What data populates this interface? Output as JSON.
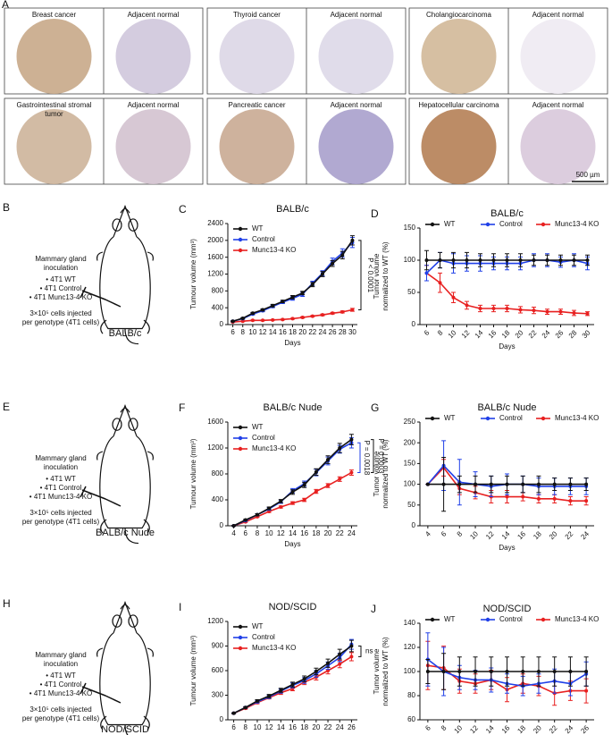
{
  "panel_a": {
    "label": "A",
    "scale_bar": "500 µm",
    "tissues": [
      {
        "tumor": "Breast cancer",
        "normal": "Adjacent normal"
      },
      {
        "tumor": "Thyroid cancer",
        "normal": "Adjacent normal"
      },
      {
        "tumor": "Cholangiocarcinoma",
        "normal": "Adjacent normal"
      },
      {
        "tumor": [
          "Gastrointestinal stromal",
          "tumor"
        ],
        "normal": "Adjacent normal"
      },
      {
        "tumor": "Pancreatic cancer",
        "normal": "Adjacent normal"
      },
      {
        "tumor": "Hepatocellular carcinoma",
        "normal": "Adjacent normal"
      }
    ]
  },
  "mice": [
    {
      "label": "B",
      "inoculation": [
        "Mammary gland",
        "inoculation"
      ],
      "genotypes": [
        {
          "text": "• 4T1 WT",
          "color": "#222222"
        },
        {
          "text": "• 4T1 Control",
          "color": "#1f3fe0"
        },
        {
          "text": "• 4T1 Munc13-4 KO",
          "color": "#e02020"
        }
      ],
      "cells": [
        "3×10⁵ cells injected",
        "per genotype (4T1 cells)"
      ],
      "strain": "BALB/c"
    },
    {
      "label": "E",
      "inoculation": [
        "Mammary gland",
        "inoculation"
      ],
      "genotypes": [
        {
          "text": "• 4T1 WT",
          "color": "#222222"
        },
        {
          "text": "• 4T1 Control",
          "color": "#1f3fe0"
        },
        {
          "text": "• 4T1 Munc13-4 KO",
          "color": "#e02020"
        }
      ],
      "cells": [
        "3×10⁵ cells injected",
        "per genotype (4T1 cells)"
      ],
      "strain": "BALB/c Nude"
    },
    {
      "label": "H",
      "inoculation": [
        "Mammary gland",
        "inoculation"
      ],
      "genotypes": [
        {
          "text": "• 4T1 WT",
          "color": "#222222"
        },
        {
          "text": "• 4T1 Control",
          "color": "#1f3fe0"
        },
        {
          "text": "• 4T1 Munc13-4 KO",
          "color": "#e02020"
        }
      ],
      "cells": [
        "3×10⁵ cells injected",
        "per genotype (4T1 cells)"
      ],
      "strain": "NOD/SCID"
    }
  ],
  "chart_data": [
    {
      "type": "line",
      "label": "C",
      "title": "BALB/c",
      "xlabel": "Days",
      "ylabel": [
        "Tumour volume (mm³)"
      ],
      "legend": "upper left",
      "xtick_rotation": 0,
      "x": [
        6,
        8,
        10,
        12,
        14,
        16,
        18,
        20,
        22,
        24,
        26,
        28,
        30
      ],
      "xlim": [
        5,
        31
      ],
      "xticks": [
        6,
        8,
        10,
        12,
        14,
        16,
        18,
        20,
        22,
        24,
        26,
        28,
        30
      ],
      "ylim": [
        0,
        2400
      ],
      "yticks": [
        0,
        400,
        800,
        1200,
        1600,
        2000,
        2400
      ],
      "annotations": [
        "P < 0.0001"
      ],
      "series": [
        {
          "name": "WT",
          "color": "#111111",
          "values": [
            80,
            150,
            270,
            350,
            450,
            550,
            650,
            750,
            950,
            1200,
            1450,
            1650,
            2000
          ],
          "errors": [
            10,
            15,
            20,
            25,
            30,
            30,
            40,
            40,
            50,
            60,
            70,
            90,
            110
          ]
        },
        {
          "name": "Control",
          "color": "#2040e8",
          "values": [
            80,
            140,
            250,
            330,
            430,
            530,
            620,
            720,
            980,
            1220,
            1500,
            1700,
            1950
          ],
          "errors": [
            10,
            15,
            20,
            25,
            30,
            30,
            40,
            50,
            50,
            60,
            80,
            100,
            120
          ]
        },
        {
          "name": "Munc13-4 KO",
          "color": "#e82020",
          "values": [
            60,
            80,
            100,
            100,
            110,
            120,
            140,
            170,
            200,
            230,
            270,
            300,
            350
          ],
          "errors": [
            5,
            8,
            10,
            10,
            10,
            10,
            12,
            15,
            15,
            20,
            20,
            25,
            35
          ]
        }
      ]
    },
    {
      "type": "line",
      "label": "D",
      "title": "BALB/c",
      "xlabel": "Days",
      "ylabel": [
        "Tumor volume",
        "normalized to WT (%)"
      ],
      "legend": "top",
      "xtick_rotation": -45,
      "x": [
        6,
        8,
        10,
        12,
        14,
        16,
        18,
        20,
        22,
        24,
        26,
        28,
        30
      ],
      "xlim": [
        5,
        31
      ],
      "xticks": [
        6,
        8,
        10,
        12,
        14,
        16,
        18,
        20,
        22,
        24,
        26,
        28,
        30
      ],
      "ylim": [
        0,
        150
      ],
      "yticks": [
        0,
        50,
        100,
        150
      ],
      "annotations": [],
      "series": [
        {
          "name": "WT",
          "color": "#111111",
          "values": [
            100,
            100,
            100,
            100,
            100,
            100,
            100,
            100,
            100,
            100,
            100,
            100,
            100
          ],
          "errors": [
            15,
            12,
            12,
            12,
            10,
            10,
            10,
            10,
            8,
            8,
            8,
            8,
            8
          ]
        },
        {
          "name": "Control",
          "color": "#2040e8",
          "values": [
            80,
            100,
            95,
            95,
            95,
            95,
            95,
            95,
            100,
            100,
            97,
            100,
            95
          ],
          "errors": [
            12,
            12,
            15,
            12,
            12,
            10,
            10,
            10,
            10,
            10,
            8,
            10,
            10
          ]
        },
        {
          "name": "Munc13-4 KO",
          "color": "#e82020",
          "values": [
            80,
            65,
            42,
            30,
            25,
            25,
            25,
            23,
            22,
            20,
            20,
            18,
            17
          ],
          "errors": [
            12,
            15,
            8,
            6,
            5,
            5,
            5,
            5,
            5,
            4,
            4,
            4,
            3
          ]
        }
      ]
    },
    {
      "type": "line",
      "label": "F",
      "title": "BALB/c Nude",
      "xlabel": "Days",
      "ylabel": [
        "Tumour volume (mm³)"
      ],
      "legend": "upper left",
      "xtick_rotation": 0,
      "x": [
        4,
        6,
        8,
        10,
        12,
        14,
        16,
        18,
        20,
        22,
        24
      ],
      "xlim": [
        3,
        25
      ],
      "xticks": [
        4,
        6,
        8,
        10,
        12,
        14,
        16,
        18,
        20,
        22,
        24
      ],
      "ylim": [
        0,
        1600
      ],
      "yticks": [
        0,
        400,
        800,
        1200,
        1600
      ],
      "annotations": [
        "P = 0.0003",
        "P = 0.0018"
      ],
      "series": [
        {
          "name": "WT",
          "color": "#111111",
          "values": [
            0,
            90,
            170,
            270,
            380,
            520,
            630,
            830,
            1020,
            1200,
            1330
          ],
          "errors": [
            5,
            10,
            15,
            20,
            25,
            35,
            40,
            50,
            60,
            70,
            80
          ]
        },
        {
          "name": "Control",
          "color": "#2040e8",
          "values": [
            0,
            80,
            170,
            260,
            370,
            540,
            650,
            820,
            1000,
            1180,
            1280
          ],
          "errors": [
            5,
            10,
            15,
            20,
            25,
            35,
            40,
            50,
            60,
            60,
            80
          ]
        },
        {
          "name": "Munc13-4 KO",
          "color": "#e82020",
          "values": [
            0,
            60,
            140,
            220,
            290,
            350,
            400,
            530,
            620,
            720,
            820
          ],
          "errors": [
            5,
            8,
            10,
            15,
            15,
            20,
            25,
            30,
            30,
            35,
            40
          ]
        }
      ]
    },
    {
      "type": "line",
      "label": "G",
      "title": "BALB/c Nude",
      "xlabel": "Days",
      "ylabel": [
        "Tumor volume",
        "normalized to WT (%)"
      ],
      "legend": "top",
      "xtick_rotation": -45,
      "x": [
        4,
        6,
        8,
        10,
        12,
        14,
        16,
        18,
        20,
        22,
        24
      ],
      "xlim": [
        3,
        25
      ],
      "xticks": [
        4,
        6,
        8,
        10,
        12,
        14,
        16,
        18,
        20,
        22,
        24
      ],
      "ylim": [
        0,
        250
      ],
      "yticks": [
        0,
        50,
        100,
        150,
        200,
        250
      ],
      "annotations": [],
      "series": [
        {
          "name": "WT",
          "color": "#111111",
          "values": [
            100,
            100,
            100,
            100,
            100,
            100,
            100,
            100,
            100,
            100,
            100
          ],
          "errors": [
            0,
            65,
            20,
            20,
            20,
            20,
            20,
            20,
            15,
            15,
            15
          ]
        },
        {
          "name": "Control",
          "color": "#2040e8",
          "values": [
            100,
            145,
            105,
            100,
            95,
            100,
            100,
            95,
            95,
            95,
            95
          ],
          "errors": [
            0,
            60,
            55,
            30,
            25,
            25,
            20,
            20,
            20,
            20,
            20
          ]
        },
        {
          "name": "Munc13-4 KO",
          "color": "#e82020",
          "values": [
            100,
            140,
            90,
            80,
            70,
            70,
            70,
            65,
            65,
            60,
            60
          ],
          "errors": [
            0,
            20,
            15,
            15,
            15,
            15,
            10,
            10,
            10,
            10,
            10
          ]
        }
      ]
    },
    {
      "type": "line",
      "label": "I",
      "title": "NOD/SCID",
      "xlabel": "Days",
      "ylabel": [
        "Tumour volume (mm³)"
      ],
      "legend": "upper left",
      "xtick_rotation": 0,
      "x": [
        6,
        8,
        10,
        12,
        14,
        16,
        18,
        20,
        22,
        24,
        26
      ],
      "xlim": [
        5,
        27
      ],
      "xticks": [
        6,
        8,
        10,
        12,
        14,
        16,
        18,
        20,
        22,
        24,
        26
      ],
      "ylim": [
        0,
        1200
      ],
      "yticks": [
        0,
        300,
        600,
        900,
        1200
      ],
      "annotations": [
        "ns"
      ],
      "series": [
        {
          "name": "WT",
          "color": "#111111",
          "values": [
            80,
            150,
            230,
            290,
            360,
            430,
            500,
            590,
            690,
            800,
            900
          ],
          "errors": [
            5,
            10,
            15,
            20,
            25,
            30,
            35,
            40,
            50,
            60,
            70
          ]
        },
        {
          "name": "Control",
          "color": "#2040e8",
          "values": [
            80,
            150,
            220,
            280,
            350,
            420,
            480,
            560,
            660,
            760,
            920
          ],
          "errors": [
            5,
            10,
            15,
            20,
            25,
            30,
            35,
            40,
            45,
            50,
            60
          ]
        },
        {
          "name": "Munc13-4 KO",
          "color": "#e82020",
          "values": [
            80,
            140,
            210,
            270,
            330,
            380,
            460,
            520,
            600,
            680,
            770
          ],
          "errors": [
            5,
            10,
            15,
            15,
            20,
            25,
            30,
            35,
            40,
            45,
            50
          ]
        }
      ]
    },
    {
      "type": "line",
      "label": "J",
      "title": "NOD/SCID",
      "xlabel": "Days",
      "ylabel": [
        "Tumor volume",
        "normalized to WT (%)"
      ],
      "legend": "top",
      "xtick_rotation": -45,
      "x": [
        6,
        8,
        10,
        12,
        14,
        16,
        18,
        20,
        22,
        24,
        26
      ],
      "xlim": [
        5,
        27
      ],
      "xticks": [
        6,
        8,
        10,
        12,
        14,
        16,
        18,
        20,
        22,
        24,
        26
      ],
      "ylim": [
        60,
        140
      ],
      "yticks": [
        60,
        80,
        100,
        120,
        140
      ],
      "annotations": [],
      "series": [
        {
          "name": "WT",
          "color": "#111111",
          "values": [
            100,
            100,
            100,
            100,
            100,
            100,
            100,
            100,
            100,
            100,
            100
          ],
          "errors": [
            10,
            15,
            12,
            12,
            12,
            12,
            12,
            12,
            12,
            12,
            12
          ]
        },
        {
          "name": "Control",
          "color": "#2040e8",
          "values": [
            110,
            100,
            95,
            93,
            93,
            90,
            88,
            90,
            92,
            90,
            98
          ],
          "errors": [
            22,
            20,
            10,
            8,
            10,
            8,
            8,
            8,
            10,
            10,
            10
          ]
        },
        {
          "name": "Munc13-4 KO",
          "color": "#e82020",
          "values": [
            105,
            103,
            92,
            90,
            93,
            85,
            90,
            88,
            82,
            84,
            84
          ],
          "errors": [
            20,
            18,
            10,
            8,
            8,
            10,
            8,
            8,
            10,
            8,
            10
          ]
        }
      ]
    }
  ]
}
